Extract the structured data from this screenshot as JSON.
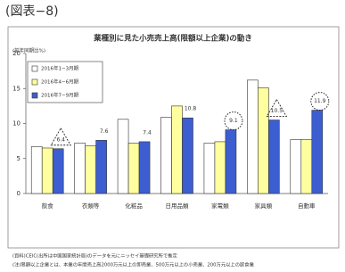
{
  "header": "(図表−8)",
  "chart_data": {
    "type": "bar",
    "title": "業種別に見た小売売上高(限額以上企業)の動き",
    "y_label": "(前年同期比%)",
    "categories": [
      "飲食",
      "衣類等",
      "化粧品",
      "日用品類",
      "家電類",
      "家具類",
      "自動車"
    ],
    "series": [
      {
        "name": "2016年1−3月期",
        "color": "#ffffff",
        "values": [
          6.7,
          7.2,
          10.6,
          10.9,
          7.2,
          16.2,
          7.7
        ]
      },
      {
        "name": "2016年4−6月期",
        "color": "#ffffa0",
        "values": [
          6.5,
          6.8,
          7.2,
          12.5,
          7.4,
          15.1,
          7.7
        ]
      },
      {
        "name": "2016年7−9月期",
        "color": "#3d5ed0",
        "values": [
          6.4,
          7.6,
          7.4,
          10.8,
          9.1,
          10.5,
          11.9
        ]
      }
    ],
    "ylim": [
      0,
      20
    ],
    "yticks": [
      0,
      5,
      10,
      15,
      20
    ],
    "legend": "upper left"
  },
  "notes": [
    "(資料)CEIC(出所は中国国家統計局)のデータを元にニッセイ基礎研究所で推定",
    "(注)限額以上企業とは、本業の年間売上高2000万元以上の卸売業、500万元以上の小売業、200万元以上の飲食業"
  ]
}
